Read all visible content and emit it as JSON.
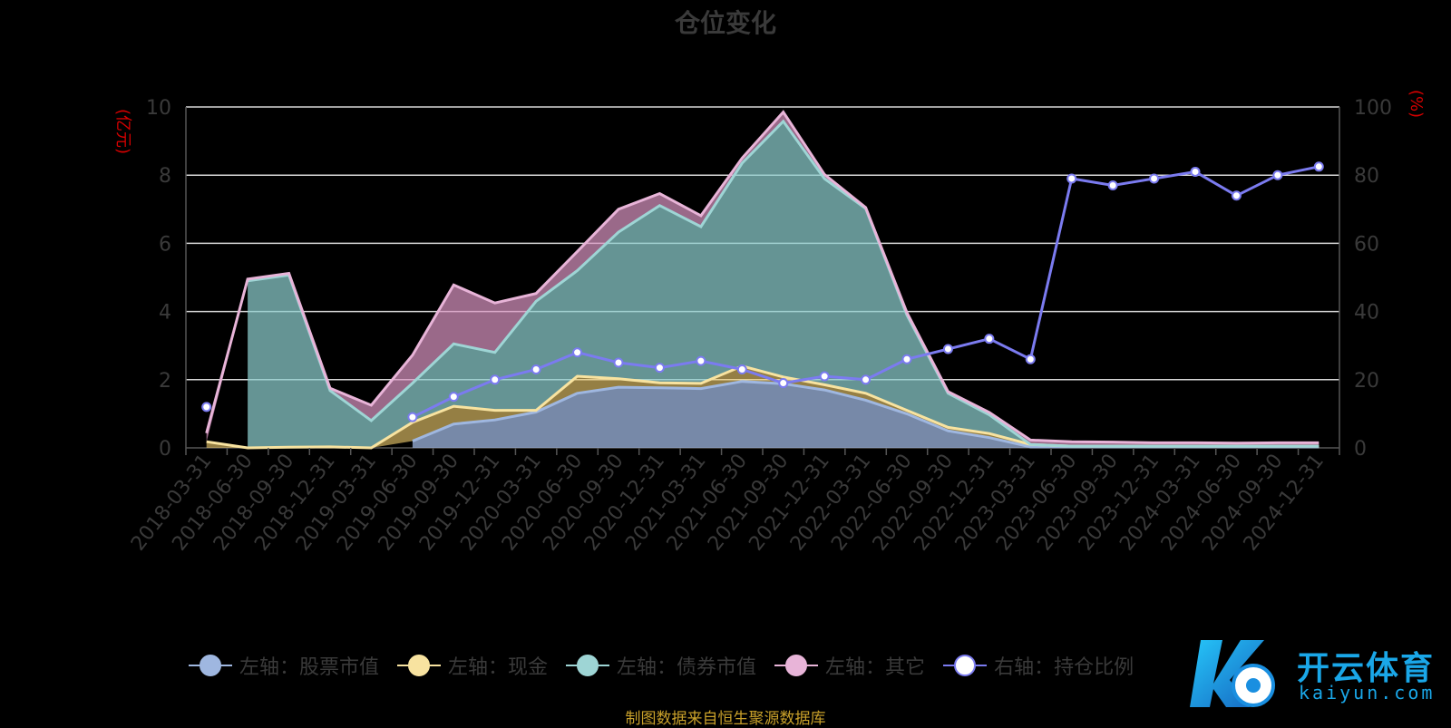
{
  "title": "仓位变化",
  "left_unit": "(亿元)",
  "right_unit": "(%)",
  "source": "制图数据来自恒生聚源数据库",
  "logo": {
    "name": "开云体育",
    "url": "kaiyun.com"
  },
  "chart_data": {
    "type": "area",
    "categories": [
      "2018-03-31",
      "2018-06-30",
      "2018-09-30",
      "2018-12-31",
      "2019-03-31",
      "2019-06-30",
      "2019-09-30",
      "2019-12-31",
      "2020-03-31",
      "2020-06-30",
      "2020-09-30",
      "2020-12-31",
      "2021-03-31",
      "2021-06-30",
      "2021-09-30",
      "2021-12-31",
      "2022-03-31",
      "2022-06-30",
      "2022-09-30",
      "2022-12-31",
      "2023-03-31",
      "2023-06-30",
      "2023-09-30",
      "2023-12-31",
      "2024-03-31",
      "2024-06-30",
      "2024-09-30",
      "2024-12-31"
    ],
    "y_left": {
      "ylim": [
        0,
        10
      ],
      "ticks": [
        0,
        2,
        4,
        6,
        8,
        10
      ]
    },
    "y_right": {
      "ylim": [
        0,
        100
      ],
      "ticks": [
        0,
        20,
        40,
        60,
        80,
        100
      ]
    },
    "grid": true,
    "legend_position": "bottom",
    "series": [
      {
        "name": "左轴：股票市值",
        "axis": "left",
        "stack": true,
        "color": "#9fb7e0",
        "values": [
          null,
          null,
          null,
          null,
          null,
          0.2,
          0.7,
          0.82,
          1.05,
          1.6,
          1.78,
          1.76,
          1.74,
          1.95,
          1.88,
          1.7,
          1.4,
          1.0,
          0.5,
          0.3,
          0.03,
          0.03,
          0.03,
          0.03,
          0.03,
          0.03,
          0.03,
          0.03
        ]
      },
      {
        "name": "左轴：现金",
        "axis": "left",
        "stack": true,
        "color": "#f8e3a0",
        "values": [
          0.18,
          0.0,
          0.02,
          0.03,
          0.0,
          0.55,
          0.52,
          0.28,
          0.05,
          0.5,
          0.25,
          0.15,
          0.15,
          0.45,
          0.2,
          0.15,
          0.2,
          0.1,
          0.1,
          0.12,
          0.07,
          0.02,
          0.02,
          0.02,
          0.02,
          0.02,
          0.02,
          0.02
        ]
      },
      {
        "name": "左轴：债券市值",
        "axis": "left",
        "stack": true,
        "color": "#9ed5d5",
        "values": [
          null,
          4.9,
          5.05,
          1.65,
          0.8,
          1.15,
          1.83,
          1.7,
          3.2,
          3.1,
          4.3,
          5.2,
          4.6,
          5.95,
          7.5,
          6.05,
          5.42,
          2.8,
          1.0,
          0.55,
          0.0,
          0.0,
          0.0,
          0.0,
          0.0,
          0.0,
          0.0,
          0.0
        ]
      },
      {
        "name": "左轴：其它",
        "axis": "left",
        "stack": true,
        "color": "#e8b4d8",
        "values": [
          0.25,
          0.05,
          0.05,
          0.07,
          0.45,
          0.82,
          1.73,
          1.45,
          0.23,
          0.56,
          0.67,
          0.35,
          0.32,
          0.15,
          0.27,
          0.12,
          0.03,
          0.07,
          0.05,
          0.07,
          0.13,
          0.13,
          0.12,
          0.1,
          0.1,
          0.09,
          0.1,
          0.1
        ]
      },
      {
        "name": "右轴：持仓比例",
        "axis": "right",
        "stack": false,
        "color": "#7b7bf0",
        "values": [
          12,
          null,
          null,
          null,
          null,
          9,
          15,
          20,
          23,
          28,
          25,
          23.5,
          25.5,
          23,
          19,
          21,
          20,
          26,
          29,
          32,
          26,
          79,
          77,
          79,
          81,
          74,
          80,
          82.5
        ]
      }
    ]
  }
}
